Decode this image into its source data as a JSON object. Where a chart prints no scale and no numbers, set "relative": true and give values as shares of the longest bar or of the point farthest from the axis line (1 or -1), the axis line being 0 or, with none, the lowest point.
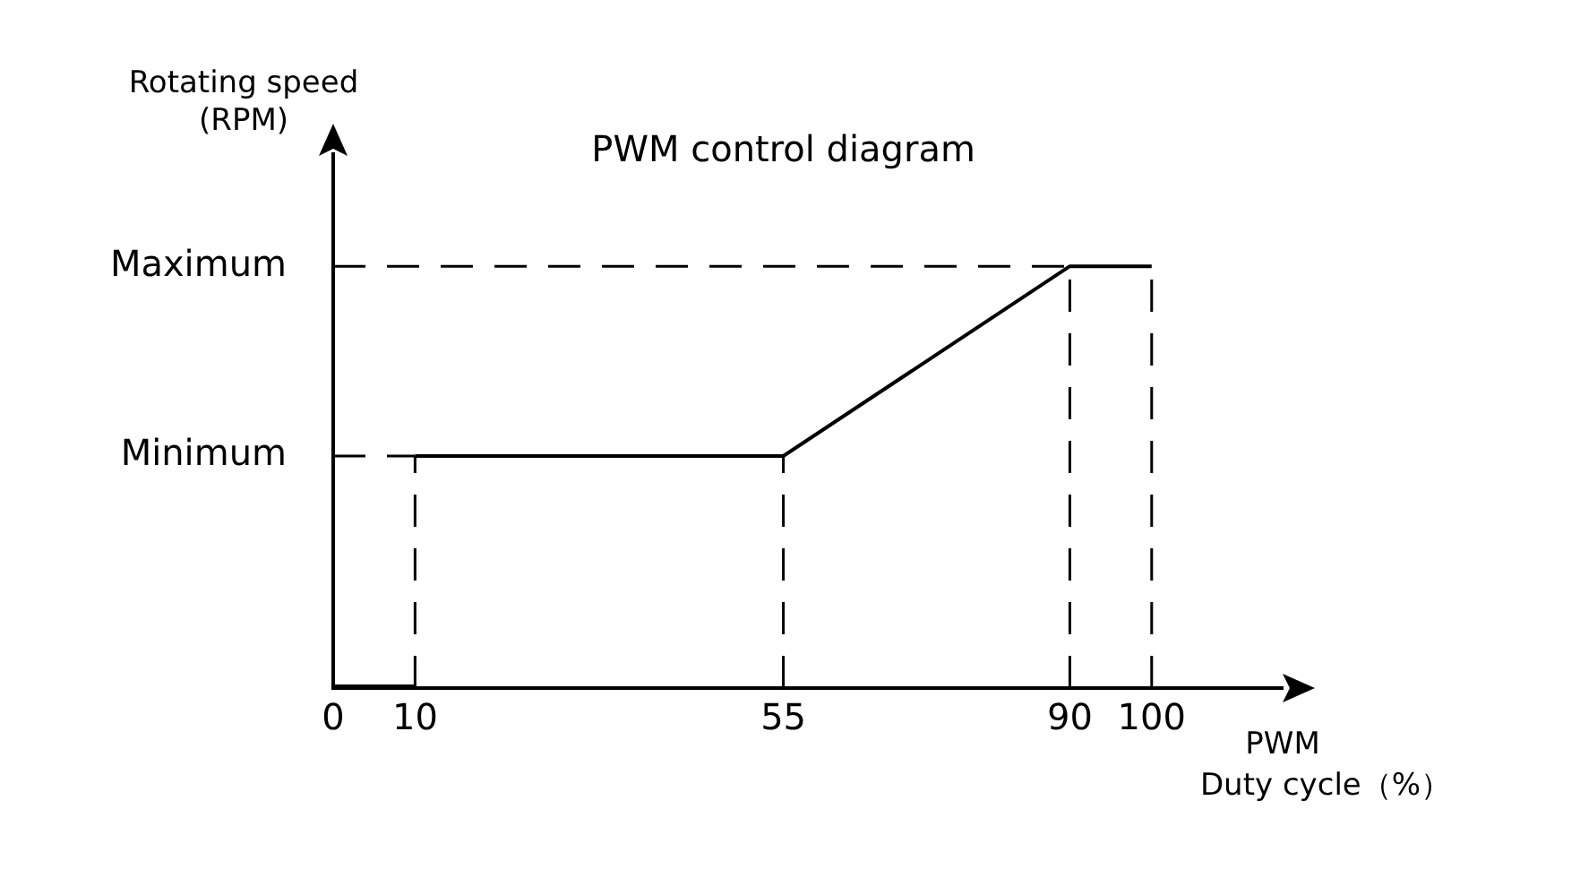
{
  "chart_data": {
    "type": "line",
    "title": "PWM control diagram",
    "ylabel": "Rotating speed\n(RPM)",
    "xlabel": "PWM\nDuty cycle（%）",
    "xlim": [
      0,
      116
    ],
    "xticks": [
      0,
      10,
      55,
      90,
      100
    ],
    "relative": true,
    "series": [
      {
        "color": "#000000",
        "x": [
          0,
          10
        ],
        "values": [
          0,
          0
        ]
      },
      {
        "color": "#000000",
        "x": [
          10,
          55,
          90,
          100
        ],
        "values": [
          0.55,
          0.55,
          1,
          1
        ]
      }
    ],
    "ref_lines": [
      {
        "axis": "x",
        "value": 10,
        "line_style": "dashed",
        "color": "#000000"
      },
      {
        "axis": "x",
        "value": 55,
        "line_style": "dashed",
        "color": "#000000"
      },
      {
        "axis": "x",
        "value": 90,
        "line_style": "dashed",
        "color": "#000000"
      },
      {
        "axis": "x",
        "value": 100,
        "line_style": "dashed",
        "color": "#000000"
      },
      {
        "axis": "y",
        "value": 0.55,
        "label": "Minimum",
        "line_style": "dashed",
        "color": "#000000"
      },
      {
        "axis": "y",
        "value": 1,
        "label": "Maximum",
        "line_style": "dashed",
        "color": "#000000"
      }
    ],
    "grid": false,
    "legend": false,
    "marker": "none",
    "line_style": "solid"
  }
}
